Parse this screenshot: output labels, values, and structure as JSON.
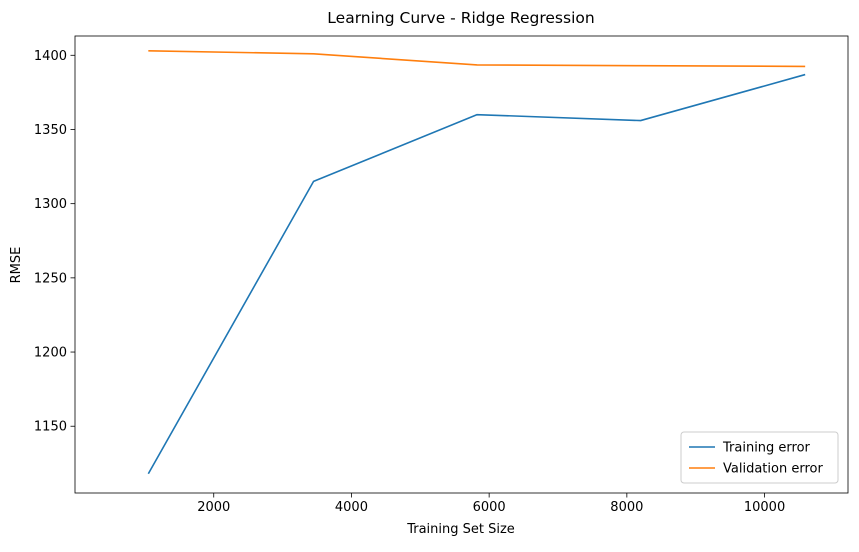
{
  "chart_data": {
    "type": "line",
    "title": "Learning Curve - Ridge Regression",
    "xlabel": "Training Set Size",
    "ylabel": "RMSE",
    "xlim": [
      -15,
      11212
    ],
    "ylim": [
      1105,
      1413
    ],
    "x_ticks": [
      2000,
      4000,
      6000,
      8000,
      10000
    ],
    "y_ticks": [
      1150,
      1200,
      1250,
      1300,
      1350,
      1400
    ],
    "grid": false,
    "legend_position": "lower-right",
    "x": [
      1050,
      3450,
      5825,
      8200,
      10590
    ],
    "series": [
      {
        "name": "Training error",
        "color": "#1f77b4",
        "values": [
          1118,
          1315,
          1360,
          1356,
          1387
        ]
      },
      {
        "name": "Validation error",
        "color": "#ff7f0e",
        "values": [
          1403,
          1401,
          1393.5,
          1393,
          1392.5
        ]
      }
    ]
  }
}
